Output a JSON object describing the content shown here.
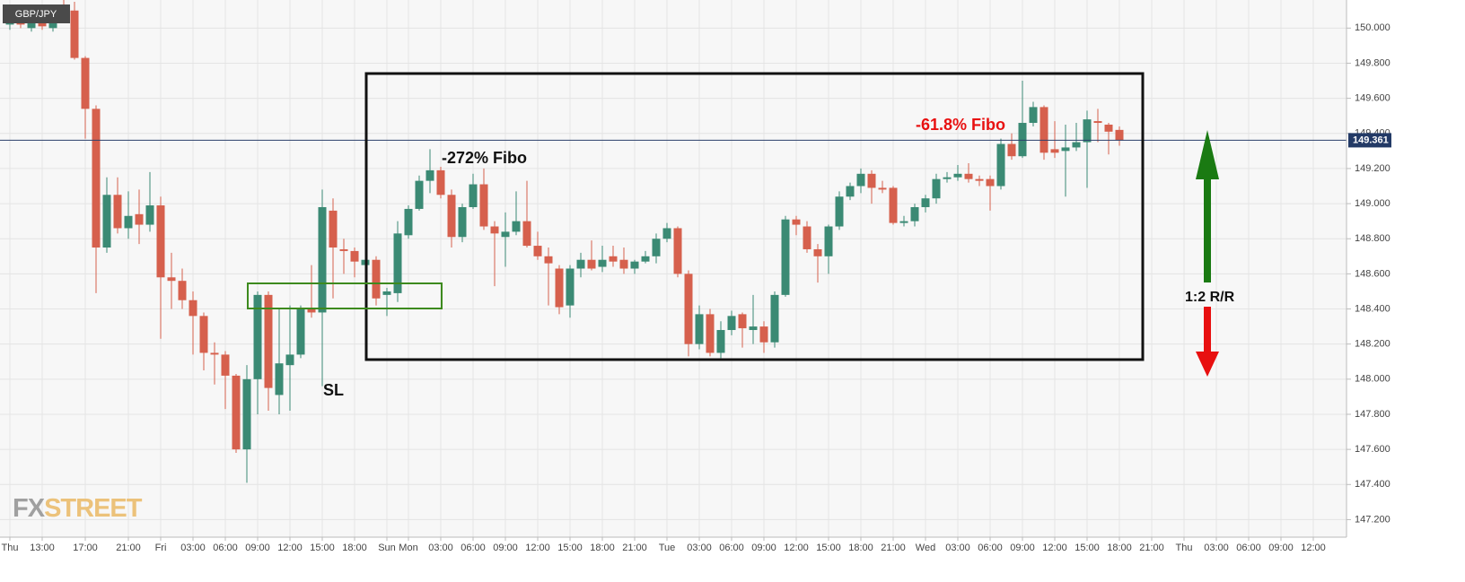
{
  "chart_data": {
    "type": "candlestick",
    "symbol": "GBP/JPY",
    "watermark": [
      "FX",
      "STREET"
    ],
    "annotations": [
      "-272% Fibo",
      "-61.8% Fibo",
      "SL",
      "1:2 R/R"
    ],
    "up_color": "#3b8a74",
    "down_color": "#d6604d",
    "grid": true,
    "categories": [
      "Thu",
      null,
      null,
      "13:00",
      null,
      null,
      null,
      "17:00",
      null,
      null,
      null,
      "21:00",
      null,
      null,
      "Fri",
      null,
      null,
      "03:00",
      null,
      null,
      "06:00",
      null,
      null,
      "09:00",
      null,
      null,
      "12:00",
      null,
      null,
      "15:00",
      null,
      null,
      "18:00",
      null,
      null,
      "Sun",
      null,
      "Mon",
      null,
      null,
      "03:00",
      null,
      null,
      "06:00",
      null,
      null,
      "09:00",
      null,
      null,
      "12:00",
      null,
      null,
      "15:00",
      null,
      null,
      "18:00",
      null,
      null,
      "21:00",
      null,
      null,
      "Tue",
      null,
      null,
      "03:00",
      null,
      null,
      "06:00",
      null,
      null,
      "09:00",
      null,
      null,
      "12:00",
      null,
      null,
      "15:00",
      null,
      null,
      "18:00",
      null,
      null,
      "21:00",
      null,
      null,
      "Wed",
      null,
      null,
      "03:00",
      null,
      null,
      "06:00",
      null,
      null,
      "09:00",
      null,
      null,
      "12:00",
      null,
      null,
      "15:00",
      null,
      null,
      "18:00",
      null,
      null,
      "21:00",
      null,
      null,
      "Thu",
      null,
      null,
      "03:00",
      null,
      null,
      "06:00",
      null,
      null,
      "09:00",
      null,
      null,
      "12:00"
    ],
    "open": [
      150.02,
      150.06,
      150.0,
      150.06,
      150.0,
      150.12,
      150.1,
      149.83,
      149.54,
      148.75,
      149.05,
      148.86,
      148.94,
      148.88,
      148.99,
      148.58,
      148.56,
      148.45,
      148.36,
      148.15,
      148.14,
      148.02,
      147.6,
      148.0,
      148.48,
      147.91,
      148.08,
      148.14,
      148.4,
      148.38,
      148.96,
      148.74,
      148.73,
      148.65,
      148.68,
      148.48,
      148.49,
      148.82,
      148.97,
      149.13,
      149.19,
      149.05,
      148.81,
      148.98,
      149.11,
      148.87,
      148.81,
      148.84,
      148.9,
      148.76,
      148.7,
      148.63,
      148.42,
      148.63,
      148.68,
      148.64,
      148.7,
      148.68,
      148.63,
      148.67,
      148.7,
      148.8,
      148.86,
      148.6,
      148.2,
      148.37,
      148.15,
      148.28,
      148.37,
      148.28,
      148.3,
      148.21,
      148.48,
      148.91,
      148.87,
      148.74,
      148.7,
      148.87,
      149.04,
      149.1,
      149.17,
      149.09,
      149.09,
      148.89,
      148.9,
      148.98,
      149.03,
      149.14,
      149.15,
      149.17,
      149.14,
      149.14,
      149.1,
      149.34,
      149.27,
      149.46,
      149.55,
      149.31,
      149.3,
      149.32,
      149.35,
      149.47,
      149.45,
      149.42,
      null,
      null,
      null,
      null,
      null,
      null,
      null,
      null,
      null,
      null,
      null,
      null,
      null,
      null,
      null,
      null,
      null,
      null
    ],
    "high": [
      150.1,
      150.09,
      150.08,
      150.1,
      150.08,
      150.16,
      150.15,
      149.84,
      149.56,
      149.15,
      149.15,
      149.07,
      149.08,
      149.18,
      149.04,
      148.72,
      148.63,
      148.5,
      148.38,
      148.21,
      148.16,
      148.03,
      148.08,
      148.5,
      148.5,
      148.4,
      148.42,
      148.42,
      148.65,
      149.08,
      149.03,
      148.8,
      148.75,
      148.72,
      148.7,
      148.52,
      148.9,
      148.99,
      149.16,
      149.31,
      149.21,
      149.08,
      149.0,
      149.17,
      149.2,
      148.9,
      148.95,
      149.07,
      149.13,
      148.84,
      148.75,
      148.65,
      148.65,
      148.72,
      148.79,
      148.76,
      148.76,
      148.75,
      148.68,
      148.73,
      148.83,
      148.89,
      148.87,
      148.62,
      148.42,
      148.4,
      148.33,
      148.39,
      148.38,
      148.48,
      148.33,
      148.5,
      148.93,
      148.93,
      148.9,
      148.77,
      148.88,
      149.07,
      149.12,
      149.2,
      149.19,
      149.13,
      149.1,
      148.93,
      149.0,
      149.05,
      149.17,
      149.18,
      149.22,
      149.23,
      149.16,
      149.16,
      149.37,
      149.4,
      149.7,
      149.58,
      149.56,
      149.47,
      149.45,
      149.46,
      149.53,
      149.54,
      149.46,
      149.44,
      null,
      null,
      null,
      null,
      null,
      null,
      null,
      null,
      null,
      null,
      null,
      null,
      null,
      null,
      null,
      null,
      null,
      null
    ],
    "low": [
      149.99,
      150.0,
      149.98,
      149.99,
      149.98,
      150.08,
      149.82,
      149.37,
      148.49,
      148.72,
      148.83,
      148.8,
      148.77,
      148.84,
      148.23,
      148.4,
      148.4,
      148.14,
      148.05,
      147.97,
      147.83,
      147.58,
      147.41,
      147.8,
      147.82,
      147.8,
      147.82,
      148.12,
      148.35,
      147.96,
      148.46,
      148.6,
      148.58,
      148.58,
      148.42,
      148.36,
      148.44,
      148.8,
      148.96,
      149.06,
      149.03,
      148.75,
      148.78,
      148.97,
      148.85,
      148.53,
      148.64,
      148.82,
      148.75,
      148.68,
      148.42,
      148.37,
      148.35,
      148.58,
      148.62,
      148.61,
      148.64,
      148.6,
      148.6,
      148.66,
      148.66,
      148.78,
      148.58,
      148.13,
      148.17,
      148.13,
      148.12,
      148.25,
      148.18,
      148.2,
      148.15,
      148.18,
      148.47,
      148.82,
      148.72,
      148.55,
      148.6,
      148.85,
      149.02,
      149.06,
      149.0,
      149.06,
      148.88,
      148.87,
      148.87,
      148.95,
      149.0,
      149.12,
      149.13,
      149.12,
      149.1,
      148.96,
      149.08,
      149.25,
      149.26,
      149.44,
      149.25,
      149.26,
      149.04,
      149.3,
      149.09,
      149.35,
      149.28,
      149.33,
      null,
      null,
      null,
      null,
      null,
      null,
      null,
      null,
      null,
      null,
      null,
      null,
      null,
      null,
      null,
      null,
      null,
      null
    ],
    "close": [
      150.06,
      150.02,
      150.05,
      150.01,
      150.06,
      150.1,
      149.83,
      149.54,
      148.75,
      149.05,
      148.86,
      148.93,
      148.88,
      148.99,
      148.58,
      148.56,
      148.45,
      148.36,
      148.15,
      148.14,
      148.02,
      147.6,
      148.0,
      148.48,
      147.95,
      148.09,
      148.14,
      148.4,
      148.38,
      148.98,
      148.75,
      148.73,
      148.67,
      148.68,
      148.46,
      148.5,
      148.83,
      148.97,
      149.13,
      149.19,
      149.05,
      148.81,
      148.98,
      149.11,
      148.87,
      148.83,
      148.84,
      148.9,
      148.76,
      148.7,
      148.66,
      148.41,
      148.63,
      148.68,
      148.63,
      148.68,
      148.67,
      148.63,
      148.67,
      148.7,
      148.8,
      148.86,
      148.6,
      148.2,
      148.37,
      148.15,
      148.28,
      148.36,
      148.29,
      148.3,
      148.21,
      148.48,
      148.91,
      148.88,
      148.74,
      148.7,
      148.87,
      149.04,
      149.1,
      149.17,
      149.09,
      149.08,
      148.89,
      148.9,
      148.98,
      149.03,
      149.14,
      149.15,
      149.17,
      149.14,
      149.13,
      149.1,
      149.34,
      149.27,
      149.46,
      149.55,
      149.29,
      149.29,
      149.32,
      149.35,
      149.48,
      149.46,
      149.41,
      149.36,
      null,
      null,
      null,
      null,
      null,
      null,
      null,
      null,
      null,
      null,
      null,
      null,
      null,
      null,
      null,
      null,
      null,
      null
    ],
    "last_price": {
      "value": 149.361,
      "label": "149.361"
    },
    "ylim": [
      147.1,
      150.16
    ],
    "yticks": [
      {
        "value": 147.2,
        "label": "147.200"
      },
      {
        "value": 147.4,
        "label": "147.400"
      },
      {
        "value": 147.6,
        "label": "147.600"
      },
      {
        "value": 147.8,
        "label": "147.800"
      },
      {
        "value": 148.0,
        "label": "148.000"
      },
      {
        "value": 148.2,
        "label": "148.200"
      },
      {
        "value": 148.4,
        "label": "148.400"
      },
      {
        "value": 148.6,
        "label": "148.600"
      },
      {
        "value": 148.8,
        "label": "148.800"
      },
      {
        "value": 149.0,
        "label": "149.000"
      },
      {
        "value": 149.2,
        "label": "149.200"
      },
      {
        "value": 149.4,
        "label": "149.400"
      },
      {
        "value": 149.6,
        "label": "149.600"
      },
      {
        "value": 149.8,
        "label": "149.800"
      },
      {
        "value": 150.0,
        "label": "150.000"
      }
    ]
  }
}
